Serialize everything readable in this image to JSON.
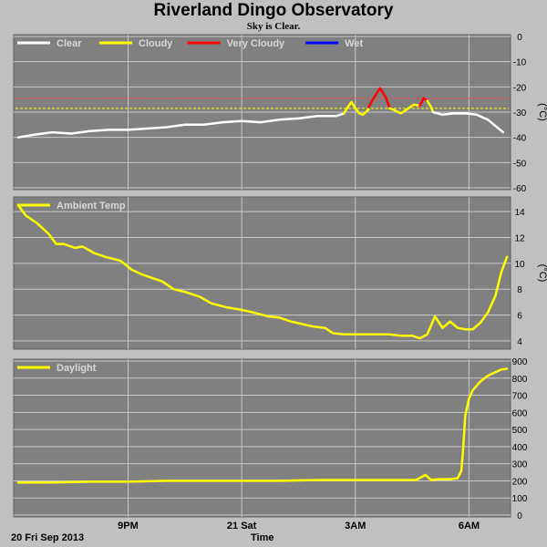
{
  "header": {
    "title": "Riverland Dingo Observatory",
    "subtitle": "Sky is Clear."
  },
  "footer": {
    "date_label": "20 Fri Sep 2013",
    "xlabel": "Time"
  },
  "x_ticks": [
    {
      "label": "9PM",
      "hour": 21
    },
    {
      "label": "21 Sat",
      "hour": 24
    },
    {
      "label": "3AM",
      "hour": 27
    },
    {
      "label": "6AM",
      "hour": 30
    }
  ],
  "x_range_hours": [
    18.1,
    31.0
  ],
  "chart_data": [
    {
      "type": "line",
      "panel": "sky",
      "legend": [
        {
          "label": "Clear",
          "color": "#ffffff"
        },
        {
          "label": "Cloudy",
          "color": "#ffff00"
        },
        {
          "label": "Very Cloudy",
          "color": "#ff0000"
        },
        {
          "label": "Wet",
          "color": "#0000ff"
        }
      ],
      "ylabel": "(°C)",
      "ylim": [
        -60,
        0
      ],
      "yticks": [
        0,
        -10,
        -20,
        -30,
        -40,
        -50,
        -60
      ],
      "thresholds": [
        {
          "value": -24.5,
          "color": "#ff4040"
        },
        {
          "value": -28.5,
          "color": "#ffff00"
        }
      ],
      "series": [
        {
          "name": "Clear",
          "color": "#ffffff",
          "x": [
            18.1,
            18.5,
            19.0,
            19.5,
            20.0,
            20.5,
            21.0,
            21.5,
            22.0,
            22.5,
            23.0,
            23.5,
            24.0,
            24.5,
            25.0,
            25.5,
            26.0,
            26.5,
            26.7
          ],
          "y": [
            -40,
            -39,
            -38,
            -38.5,
            -37.5,
            -37,
            -37,
            -36.5,
            -36,
            -35,
            -35,
            -34,
            -33.5,
            -34,
            -33,
            -32.5,
            -31.5,
            -31.5,
            -30.5
          ]
        },
        {
          "name": "Cloudy",
          "color": "#ffff00",
          "x": [
            26.7,
            26.8,
            26.9,
            27.0,
            27.1,
            27.2,
            27.35
          ],
          "y": [
            -30.5,
            -28,
            -26,
            -28.5,
            -30.5,
            -31,
            -29
          ]
        },
        {
          "name": "Very Cloudy",
          "color": "#ff0000",
          "x": [
            27.35,
            27.5,
            27.65,
            27.8,
            27.9
          ],
          "y": [
            -28,
            -24,
            -20.5,
            -24,
            -28
          ]
        },
        {
          "name": "Cloudy",
          "color": "#ffff00",
          "x": [
            27.9,
            28.0,
            28.2,
            28.4,
            28.55,
            28.7
          ],
          "y": [
            -28.5,
            -29,
            -30.5,
            -28.5,
            -27,
            -27.5
          ]
        },
        {
          "name": "Very Cloudy",
          "color": "#ff0000",
          "x": [
            28.7,
            28.8,
            28.9
          ],
          "y": [
            -27.5,
            -24.5,
            -25.5
          ]
        },
        {
          "name": "Cloudy",
          "color": "#ffff00",
          "x": [
            28.9,
            29.0,
            29.05
          ],
          "y": [
            -25.5,
            -28,
            -30
          ]
        },
        {
          "name": "Clear",
          "color": "#ffffff",
          "x": [
            29.05,
            29.3,
            29.6,
            29.9,
            30.2,
            30.5,
            30.7,
            30.9
          ],
          "y": [
            -30,
            -31,
            -30.5,
            -30.5,
            -31,
            -33,
            -35.5,
            -38
          ]
        }
      ]
    },
    {
      "type": "line",
      "panel": "ambient",
      "legend": [
        {
          "label": "Ambient Temp",
          "color": "#ffff00"
        }
      ],
      "ylabel": "(°C)",
      "ylim": [
        3.5,
        15
      ],
      "yticks": [
        4,
        6,
        8,
        10,
        12,
        14
      ],
      "series": [
        {
          "name": "Ambient Temp",
          "color": "#ffff00",
          "x": [
            18.1,
            18.3,
            18.6,
            18.9,
            19.1,
            19.3,
            19.6,
            19.8,
            20.1,
            20.4,
            20.8,
            21.1,
            21.4,
            21.9,
            22.2,
            22.5,
            22.9,
            23.2,
            23.6,
            24.0,
            24.3,
            24.7,
            25.0,
            25.3,
            25.6,
            25.9,
            26.2,
            26.4,
            26.7,
            27.0,
            27.3,
            27.6,
            27.9,
            28.2,
            28.5,
            28.7,
            28.9,
            29.0,
            29.1,
            29.3,
            29.5,
            29.7,
            29.9,
            30.1,
            30.3,
            30.5,
            30.7,
            30.85
          ],
          "y": [
            14.5,
            13.7,
            13.1,
            12.3,
            11.5,
            11.5,
            11.2,
            11.3,
            10.8,
            10.5,
            10.2,
            9.5,
            9.1,
            8.6,
            8.0,
            7.8,
            7.4,
            6.9,
            6.6,
            6.4,
            6.2,
            5.9,
            5.8,
            5.5,
            5.3,
            5.1,
            5.0,
            4.6,
            4.5,
            4.5,
            4.5,
            4.5,
            4.5,
            4.4,
            4.4,
            4.2,
            4.5,
            5.2,
            5.9,
            5.0,
            5.5,
            5.0,
            4.9,
            4.9,
            5.4,
            6.2,
            7.5,
            9.3
          ]
        },
        {
          "name": "Ambient Temp",
          "color": "#ffff00",
          "x": [
            30.85,
            31.0
          ],
          "y": [
            9.3,
            10.5
          ]
        }
      ]
    },
    {
      "type": "line",
      "panel": "daylight",
      "legend": [
        {
          "label": "Daylight",
          "color": "#ffff00"
        }
      ],
      "ylabel": "",
      "ylim": [
        0,
        900
      ],
      "yticks": [
        900,
        800,
        700,
        600,
        500,
        400,
        300,
        200,
        100,
        0
      ],
      "series": [
        {
          "name": "Daylight",
          "color": "#ffff00",
          "x": [
            18.1,
            19.0,
            20.0,
            21.0,
            22.0,
            23.0,
            24.0,
            25.0,
            26.0,
            27.0,
            28.0,
            28.6,
            28.85,
            29.0,
            29.2,
            29.5,
            29.7,
            29.8,
            29.85,
            29.9,
            30.0,
            30.1,
            30.3,
            30.5,
            30.7,
            30.85,
            31.0
          ],
          "y": [
            190,
            190,
            195,
            195,
            200,
            200,
            200,
            200,
            205,
            205,
            205,
            205,
            235,
            205,
            210,
            210,
            215,
            260,
            400,
            580,
            680,
            730,
            780,
            815,
            835,
            850,
            855
          ]
        }
      ]
    }
  ]
}
